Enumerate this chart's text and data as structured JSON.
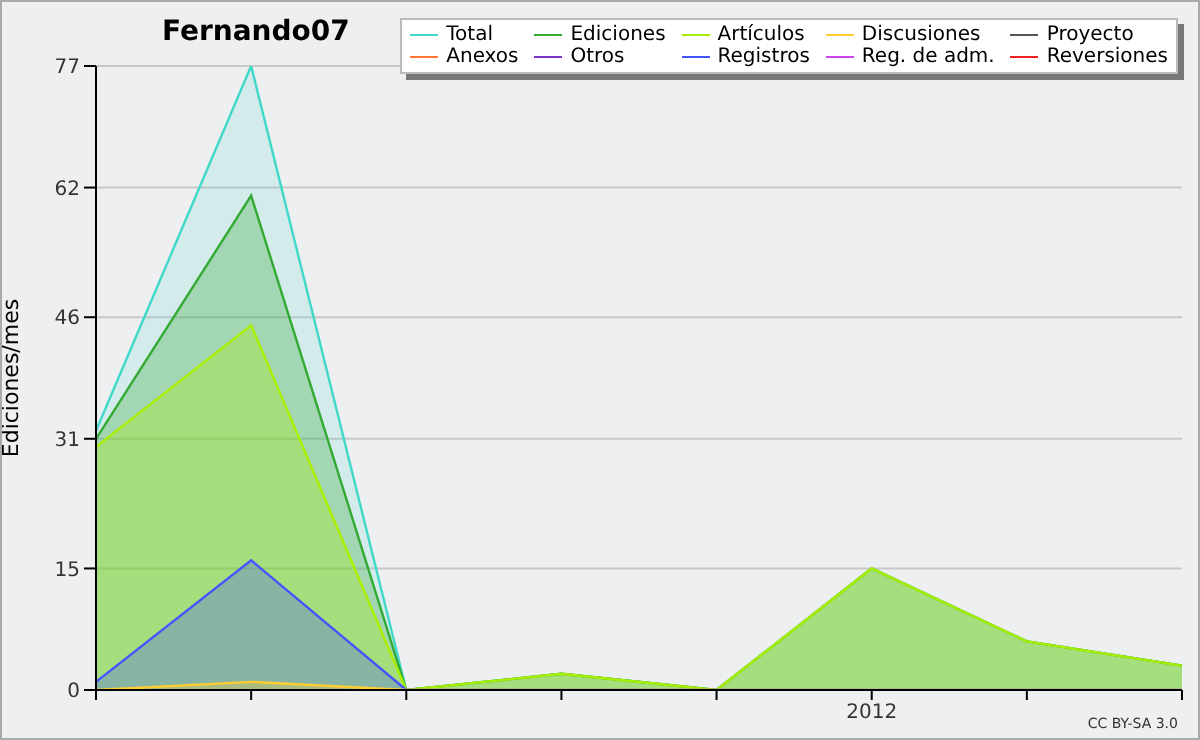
{
  "chart_data": {
    "type": "area",
    "title": "Fernando07",
    "ylabel": "Ediciones/mes",
    "categories": [
      null,
      null,
      null,
      null,
      null,
      "2012",
      null,
      null
    ],
    "series": [
      {
        "name": "Total",
        "color": "#40d8c8",
        "values": [
          32,
          77,
          0,
          2,
          0,
          15,
          6,
          3
        ]
      },
      {
        "name": "Anexos",
        "color": "#ff7733",
        "values": [
          null,
          null,
          null,
          null,
          null,
          null,
          null,
          null
        ]
      },
      {
        "name": "Ediciones",
        "color": "#33aa33",
        "values": [
          31,
          61,
          0,
          2,
          0,
          15,
          6,
          3
        ]
      },
      {
        "name": "Otros",
        "color": "#7733cc",
        "values": [
          null,
          null,
          null,
          null,
          null,
          null,
          null,
          null
        ]
      },
      {
        "name": "Artículos",
        "color": "#aaee00",
        "values": [
          30,
          45,
          0,
          2,
          0,
          15,
          6,
          3
        ]
      },
      {
        "name": "Registros",
        "color": "#4455ff",
        "values": [
          1,
          16,
          0,
          0,
          0,
          0,
          0,
          0
        ]
      },
      {
        "name": "Discusiones",
        "color": "#ffcc33",
        "values": [
          0,
          1,
          0,
          0,
          0,
          0,
          0,
          0
        ]
      },
      {
        "name": "Reg. de adm.",
        "color": "#cc44ee",
        "values": [
          null,
          null,
          null,
          null,
          null,
          null,
          null,
          null
        ]
      },
      {
        "name": "Proyecto",
        "color": "#555555",
        "values": [
          null,
          null,
          null,
          null,
          null,
          null,
          null,
          null
        ]
      },
      {
        "name": "Reversiones",
        "color": "#ee2222",
        "values": [
          null,
          null,
          null,
          null,
          null,
          null,
          null,
          null
        ]
      }
    ],
    "ylim": [
      0,
      77
    ],
    "yticks": [
      0,
      15,
      31,
      46,
      62,
      77
    ],
    "grid": "y",
    "legend": "top right",
    "annotations": [
      "CC BY-SA 3.0"
    ]
  }
}
